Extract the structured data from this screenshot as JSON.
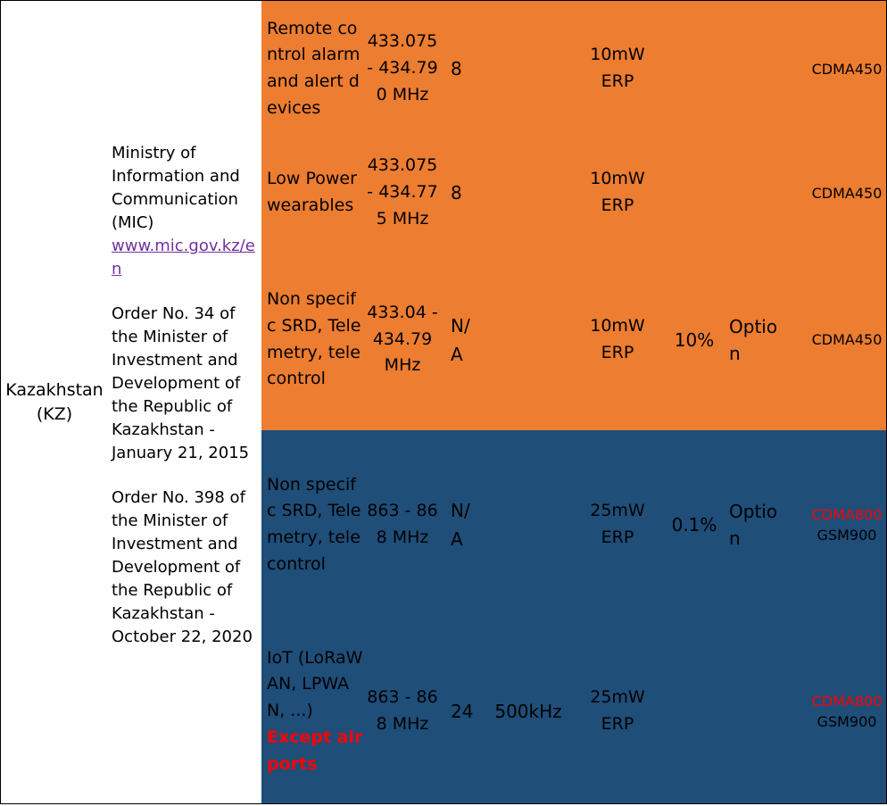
{
  "country": {
    "label": "Kazakhstan (KZ)"
  },
  "authority": {
    "name": "Ministry of Information and Communication (MIC)",
    "website": "www.mic.gov.kz/en",
    "order1": "Order No. 34 of the Minister of Investment and Development of the Republic of Kazakhstan - January 21, 2015",
    "order2": "Order No. 398 of the Minister of Investment and Development of the Republic of Kazakhstan - October 22, 2020"
  },
  "colors": {
    "orange_band": "#ed7d31",
    "blue_band": "#1f4e79",
    "link": "#7030a0",
    "restriction": "#ff0000"
  },
  "rows": [
    {
      "application": "Remote control alarm and alert devices",
      "frequency": "433.075 - 434.790 MHz",
      "channels": "8",
      "bandwidth": "",
      "power": "10mW ERP",
      "duty_cycle": "",
      "lbt": "",
      "cellular_red": "",
      "cellular": "CDMA450"
    },
    {
      "application": "Low Power wearables",
      "frequency": "433.075 - 434.775 MHz",
      "channels": "8",
      "bandwidth": "",
      "power": "10mW ERP",
      "duty_cycle": "",
      "lbt": "",
      "cellular_red": "",
      "cellular": "CDMA450"
    },
    {
      "application": "Non specifc SRD, Telemetry, telecontrol",
      "frequency": "433.04 - 434.79 MHz",
      "channels": "N/A",
      "bandwidth": "",
      "power": "10mW ERP",
      "duty_cycle": "10%",
      "lbt": "Option",
      "cellular_red": "",
      "cellular": "CDMA450"
    },
    {
      "application": "Non specifc SRD, Telemetry, telecontrol",
      "frequency": "863 - 868 MHz",
      "channels": "N/A",
      "bandwidth": "",
      "power": "25mW ERP",
      "duty_cycle": "0.1%",
      "lbt": "Option",
      "cellular_red": "CDMA800",
      "cellular": "GSM900"
    },
    {
      "application": "IoT (LoRaWAN, LPWAN, ...)",
      "restriction": "Except airports",
      "frequency": "863 - 868 MHz",
      "channels": "24",
      "bandwidth": "500kHz",
      "power": "25mW ERP",
      "duty_cycle": "",
      "lbt": "",
      "cellular_red": "CDMA800",
      "cellular": "GSM900"
    }
  ]
}
